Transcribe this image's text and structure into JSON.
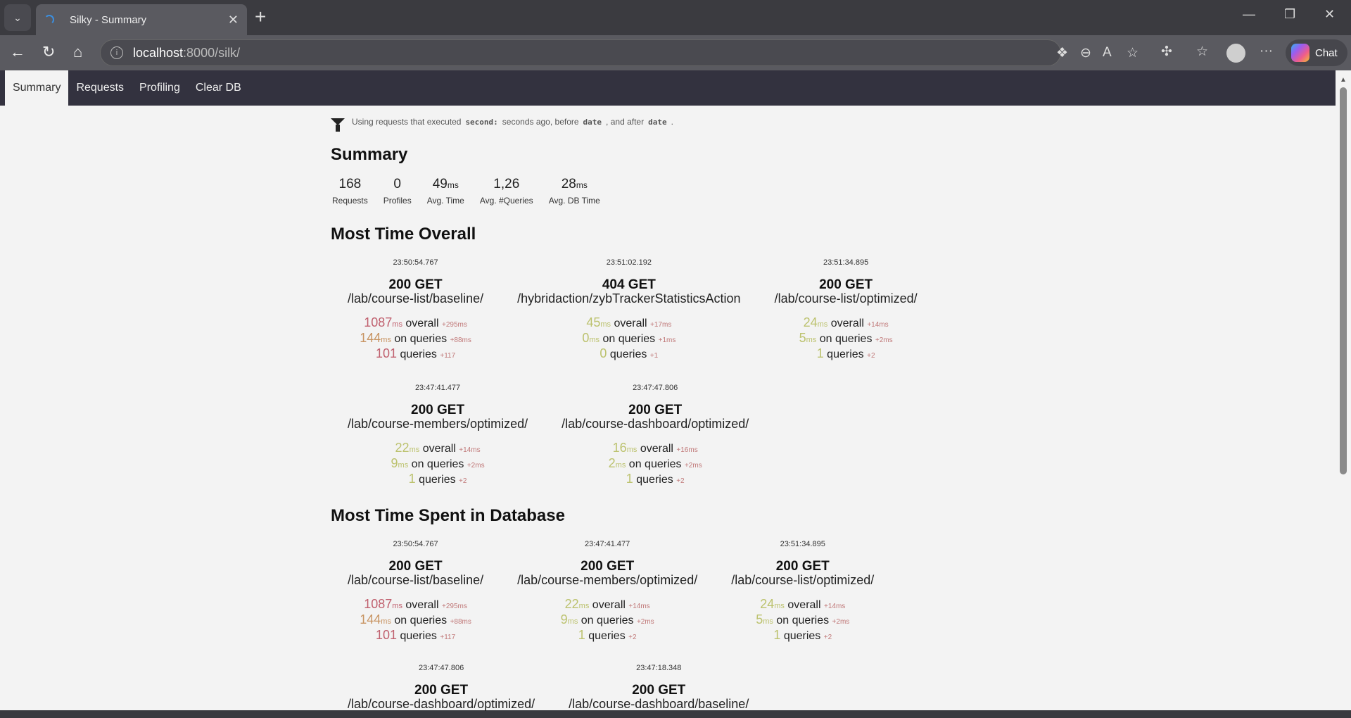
{
  "browser": {
    "tab_title": "Silky - Summary",
    "url_host": "localhost",
    "url_rest": ":8000/silk/",
    "chat_label": "Chat"
  },
  "nav": {
    "items": [
      "Summary",
      "Requests",
      "Profiling",
      "Clear DB"
    ],
    "active": "Summary"
  },
  "filter": {
    "prefix": "Using requests that executed",
    "seconds": "second:",
    "mid": "seconds ago, before",
    "date1": "date",
    "mid2": ", and after",
    "date2": "date",
    "suffix": "."
  },
  "summary": {
    "title": "Summary",
    "stats": [
      {
        "value": "168",
        "unit": "",
        "label": "Requests"
      },
      {
        "value": "0",
        "unit": "",
        "label": "Profiles"
      },
      {
        "value": "49",
        "unit": "ms",
        "label": "Avg. Time"
      },
      {
        "value": "1,26",
        "unit": "",
        "label": "Avg. #Queries"
      },
      {
        "value": "28",
        "unit": "ms",
        "label": "Avg. DB Time"
      }
    ]
  },
  "labels": {
    "ms": "ms",
    "overall": "overall",
    "on_queries": "on queries",
    "queries": "queries"
  },
  "colors": {
    "red": "#c0606e",
    "orange": "#c89462",
    "green": "#bcc26e",
    "delta": "#c07878"
  },
  "sections": [
    {
      "title": "Most Time Overall",
      "rows": [
        [
          {
            "time": "23:50:54.767",
            "status": "200 GET",
            "path": "/lab/course-list/baseline/",
            "overall": "1087",
            "overall_d": "+295ms",
            "db": "144",
            "db_d": "+88ms",
            "q": "101",
            "q_d": "+117",
            "c": [
              "red",
              "orange",
              "red"
            ]
          },
          {
            "time": "23:51:02.192",
            "status": "404 GET",
            "path": "/hybridaction/zybTrackerStatisticsAction",
            "overall": "45",
            "overall_d": "+17ms",
            "db": "0",
            "db_d": "+1ms",
            "q": "0",
            "q_d": "+1",
            "c": [
              "green",
              "green",
              "green"
            ]
          },
          {
            "time": "23:51:34.895",
            "status": "200 GET",
            "path": "/lab/course-list/optimized/",
            "overall": "24",
            "overall_d": "+14ms",
            "db": "5",
            "db_d": "+2ms",
            "q": "1",
            "q_d": "+2",
            "c": [
              "green",
              "green",
              "green"
            ]
          }
        ],
        [
          {
            "time": "23:47:41.477",
            "status": "200 GET",
            "path": "/lab/course-members/optimized/",
            "overall": "22",
            "overall_d": "+14ms",
            "db": "9",
            "db_d": "+2ms",
            "q": "1",
            "q_d": "+2",
            "c": [
              "green",
              "green",
              "green"
            ]
          },
          {
            "time": "23:47:47.806",
            "status": "200 GET",
            "path": "/lab/course-dashboard/optimized/",
            "overall": "16",
            "overall_d": "+16ms",
            "db": "2",
            "db_d": "+2ms",
            "q": "1",
            "q_d": "+2",
            "c": [
              "green",
              "green",
              "green"
            ]
          }
        ]
      ]
    },
    {
      "title": "Most Time Spent in Database",
      "rows": [
        [
          {
            "time": "23:50:54.767",
            "status": "200 GET",
            "path": "/lab/course-list/baseline/",
            "overall": "1087",
            "overall_d": "+295ms",
            "db": "144",
            "db_d": "+88ms",
            "q": "101",
            "q_d": "+117",
            "c": [
              "red",
              "orange",
              "red"
            ]
          },
          {
            "time": "23:47:41.477",
            "status": "200 GET",
            "path": "/lab/course-members/optimized/",
            "overall": "22",
            "overall_d": "+14ms",
            "db": "9",
            "db_d": "+2ms",
            "q": "1",
            "q_d": "+2",
            "c": [
              "green",
              "green",
              "green"
            ]
          },
          {
            "time": "23:51:34.895",
            "status": "200 GET",
            "path": "/lab/course-list/optimized/",
            "overall": "24",
            "overall_d": "+14ms",
            "db": "5",
            "db_d": "+2ms",
            "q": "1",
            "q_d": "+2",
            "c": [
              "green",
              "green",
              "green"
            ]
          }
        ],
        [
          {
            "time": "23:47:47.806",
            "status": "200 GET",
            "path": "/lab/course-dashboard/optimized/"
          },
          {
            "time": "23:47:18.348",
            "status": "200 GET",
            "path": "/lab/course-dashboard/baseline/"
          }
        ]
      ]
    }
  ]
}
